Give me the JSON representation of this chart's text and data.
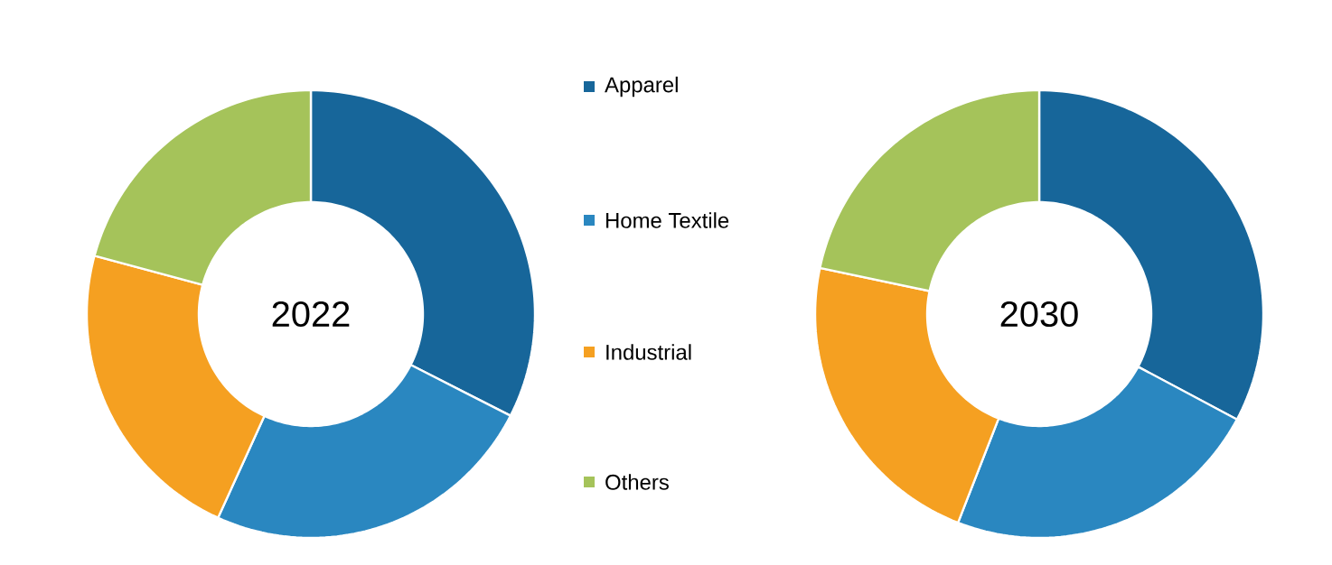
{
  "chart_data": [
    {
      "type": "donut",
      "title": "2022",
      "categories": [
        "Apparel",
        "Home Textile",
        "Industrial",
        "Others"
      ],
      "values": [
        32.5,
        24.3,
        22.4,
        20.8
      ],
      "colors": [
        "#17669a",
        "#2a87c0",
        "#f5a021",
        "#a5c35a"
      ],
      "legend": "right"
    },
    {
      "type": "donut",
      "title": "2030",
      "categories": [
        null,
        null,
        null,
        null
      ],
      "values": [
        32.8,
        23.1,
        22.4,
        21.7
      ],
      "colors": [
        "#17669a",
        "#2a87c0",
        "#f5a021",
        "#a5c35a"
      ]
    }
  ]
}
